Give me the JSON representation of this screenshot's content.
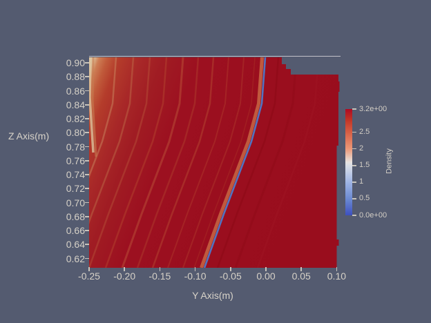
{
  "view": {
    "background_color": "#545b70",
    "text_color": "#d8d3c9",
    "top_rule_color": "#c9c9cf"
  },
  "axes": {
    "x": {
      "title": "Y Axis(m)",
      "tick_labels": [
        "-0.25",
        "-0.20",
        "-0.15",
        "-0.10",
        "-0.05",
        "0.00",
        "0.05",
        "0.10"
      ]
    },
    "z": {
      "title": "Z Axis(m)",
      "tick_labels": [
        "0.90",
        "0.88",
        "0.86",
        "0.84",
        "0.82",
        "0.80",
        "0.78",
        "0.76",
        "0.74",
        "0.72",
        "0.70",
        "0.68",
        "0.66",
        "0.64",
        "0.62"
      ]
    }
  },
  "colorbar": {
    "title": "Density",
    "tick_labels": [
      "3.2e+00",
      "2.5",
      "2",
      "1.5",
      "1",
      "0.5",
      "0.0e+00"
    ],
    "max_color": "#ae0a22",
    "mid_color": "#e7e3e0",
    "min_color": "#3d50bf"
  },
  "chart_data": {
    "type": "heatmap",
    "title": "",
    "xlabel": "Y Axis(m)",
    "ylabel": "Z Axis(m)",
    "xlim": [
      -0.25,
      0.1
    ],
    "ylim": [
      0.607,
      0.912
    ],
    "x_ticks": [
      -0.25,
      -0.2,
      -0.15,
      -0.1,
      -0.05,
      0.0,
      0.05,
      0.1
    ],
    "y_ticks": [
      0.62,
      0.64,
      0.66,
      0.68,
      0.7,
      0.72,
      0.74,
      0.76,
      0.78,
      0.8,
      0.82,
      0.84,
      0.86,
      0.88,
      0.9
    ],
    "grid": false,
    "legend_position": "right",
    "colorbar": {
      "label": "Density",
      "range": [
        0.0,
        3.2
      ],
      "tick_values": [
        3.2,
        2.5,
        2.0,
        1.5,
        1.0,
        0.5,
        0.0
      ],
      "colormap": "cool-to-warm (blue -> white -> red), max at top",
      "orientation": "vertical"
    },
    "field_summary": [
      {
        "region": "dominant area (most of domain)",
        "density": "~3.0-3.2 (dark red, near maximum)"
      },
      {
        "region": "thin diagonal band from (y=-0.087, z=0.61) to (y=-0.002, z=0.91)",
        "density": "~0.2-0.8 (blue streak) bordered on its left by ~1.7-2.2 (salmon fringe)"
      },
      {
        "region": "upper-left edge near y=-0.25, z=0.84-0.91",
        "density": "grades down to ~1.5-2.0 (pale cream/salmon sliver at edge)"
      },
      {
        "region": "left half of domain",
        "density": "faint lighter striations (~2.4-2.9) parallel to the blue band, spacing ~0.025 m"
      },
      {
        "region": "top-right boundary (y between 0.015 and 0.10, z above ~0.885)",
        "density": "no data - field edge steps down in stairs"
      },
      {
        "region": "horizontal light-gray reference line at z~0.912",
        "density": "spans full plot width above the field"
      }
    ]
  }
}
